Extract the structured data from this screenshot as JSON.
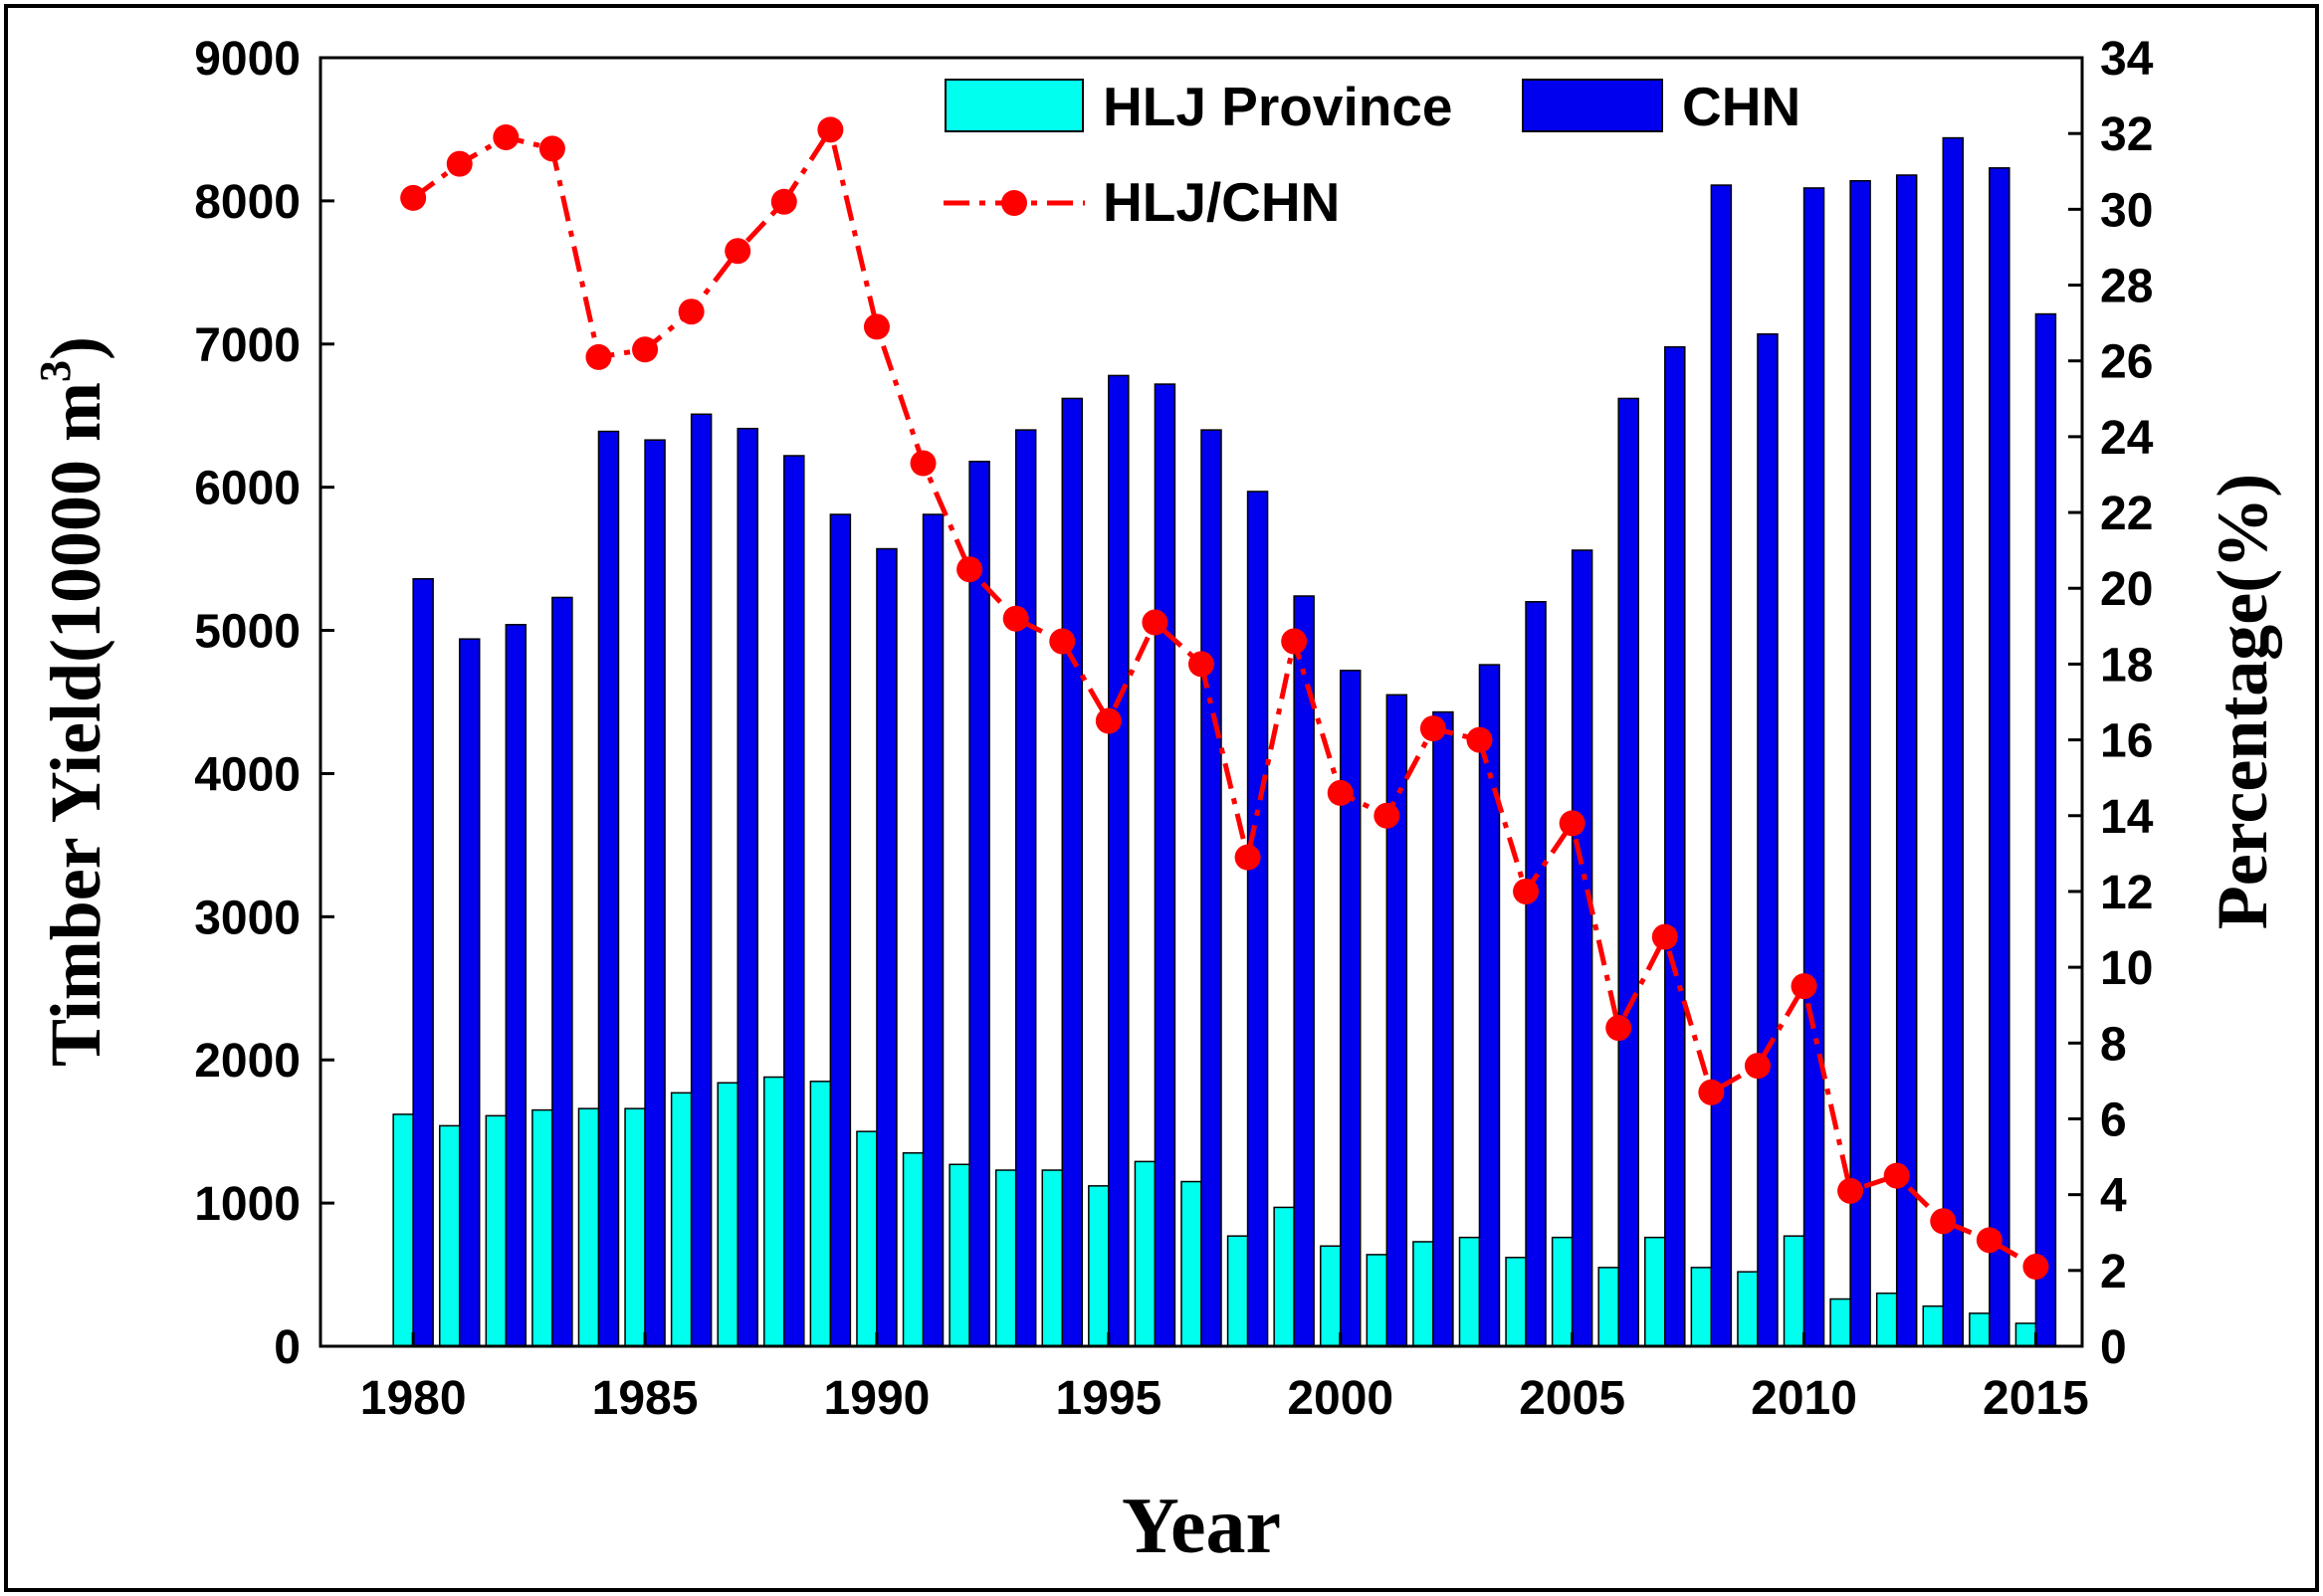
{
  "chart_data": {
    "type": "bar",
    "x": [
      1980,
      1981,
      1982,
      1983,
      1984,
      1985,
      1986,
      1987,
      1988,
      1989,
      1990,
      1991,
      1992,
      1993,
      1994,
      1995,
      1996,
      1997,
      1998,
      1999,
      2000,
      2001,
      2002,
      2003,
      2004,
      2005,
      2006,
      2007,
      2008,
      2009,
      2010,
      2011,
      2012,
      2013,
      2014,
      2015
    ],
    "series": [
      {
        "name": "HLJ Province",
        "kind": "bar",
        "axis": "left",
        "color": "#00ffee",
        "values": [
          1620,
          1540,
          1610,
          1650,
          1660,
          1660,
          1770,
          1840,
          1880,
          1850,
          1500,
          1350,
          1270,
          1230,
          1230,
          1120,
          1290,
          1150,
          770,
          970,
          700,
          640,
          730,
          760,
          620,
          760,
          550,
          760,
          550,
          520,
          770,
          330,
          370,
          280,
          230,
          160
        ]
      },
      {
        "name": "CHN",
        "kind": "bar",
        "axis": "left",
        "color": "#0000ee",
        "values": [
          5360,
          4940,
          5040,
          5230,
          6390,
          6330,
          6510,
          6410,
          6220,
          5810,
          5570,
          5810,
          6180,
          6400,
          6620,
          6780,
          6720,
          6400,
          5970,
          5240,
          4720,
          4550,
          4430,
          4760,
          5200,
          5560,
          6620,
          6980,
          8110,
          7070,
          8090,
          8140,
          8180,
          8440,
          8230,
          7210
        ]
      },
      {
        "name": "HLJ/CHN",
        "kind": "line",
        "axis": "right",
        "color": "#ff0000",
        "values": [
          30.3,
          31.2,
          31.9,
          31.6,
          26.1,
          26.3,
          27.3,
          28.9,
          30.2,
          32.1,
          26.9,
          23.3,
          20.5,
          19.2,
          18.6,
          16.5,
          19.1,
          18.0,
          12.9,
          18.6,
          14.6,
          14.0,
          16.3,
          16.0,
          12.0,
          13.8,
          8.4,
          10.8,
          6.7,
          7.4,
          9.5,
          4.1,
          4.5,
          3.3,
          2.8,
          2.1
        ]
      }
    ],
    "legend": [
      {
        "label": "HLJ Province",
        "symbol": "bar",
        "color": "#00ffee"
      },
      {
        "label": "CHN",
        "symbol": "bar",
        "color": "#0000ee"
      },
      {
        "label": "HLJ/CHN",
        "symbol": "line-dot",
        "color": "#ff0000"
      }
    ],
    "legend_position": "top-right",
    "xlabel": "Year",
    "ylabel": "Timber Yield(10000 m",
    "ylabel_superscript": "3",
    "ylabel_close": ")",
    "y2label": "Percentage(%)",
    "xlim": [
      1978,
      2016
    ],
    "ylim": [
      0,
      9000
    ],
    "y2lim": [
      0,
      34
    ],
    "xticks": [
      "1980",
      "1985",
      "1990",
      "1995",
      "2000",
      "2005",
      "2010",
      "2015"
    ],
    "yticks": [
      "0",
      "1000",
      "2000",
      "3000",
      "4000",
      "5000",
      "6000",
      "7000",
      "8000",
      "9000"
    ],
    "y2ticks": [
      "0",
      "2",
      "4",
      "6",
      "8",
      "10",
      "12",
      "14",
      "16",
      "18",
      "20",
      "22",
      "24",
      "26",
      "28",
      "30",
      "32",
      "34"
    ],
    "grid": false
  }
}
